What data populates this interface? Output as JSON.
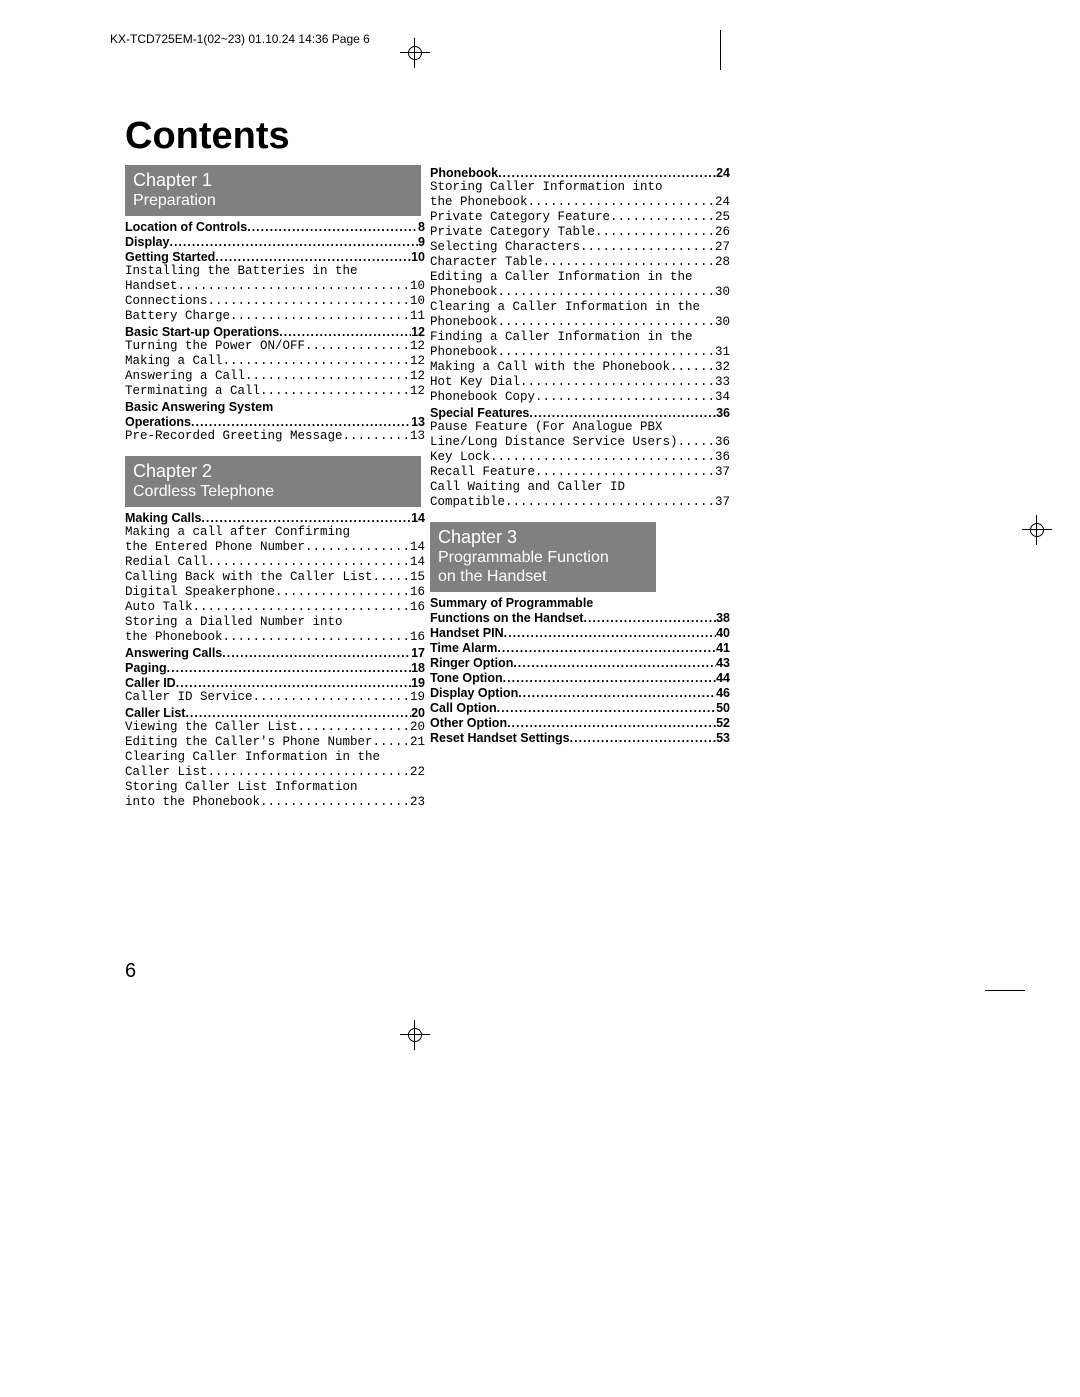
{
  "header_line": "KX-TCD725EM-1(02~23)  01.10.24 14:36  Page 6",
  "title": "Contents",
  "page_number": "6",
  "chapters": [
    {
      "num": "Chapter 1",
      "title": "Preparation",
      "groups": [
        {
          "type": "section",
          "label": "Location of Controls",
          "page": "8"
        },
        {
          "type": "section",
          "label": "Display",
          "page": "9"
        },
        {
          "type": "section",
          "label": "Getting Started",
          "page": "10"
        },
        {
          "type": "sub-wrap",
          "lines": [
            "Installing the Batteries in the",
            "Handset"
          ],
          "page": "10"
        },
        {
          "type": "sub",
          "label": "Connections",
          "page": "10"
        },
        {
          "type": "sub",
          "label": "Battery Charge",
          "page": "11"
        },
        {
          "type": "section",
          "label": "Basic Start-up Operations",
          "page": "12"
        },
        {
          "type": "sub",
          "label": "Turning the Power ON/OFF",
          "page": "12"
        },
        {
          "type": "sub",
          "label": "Making a Call",
          "page": "12"
        },
        {
          "type": "sub",
          "label": "Answering a Call",
          "page": "12"
        },
        {
          "type": "sub",
          "label": "Terminating a Call",
          "page": "12"
        },
        {
          "type": "section-wrap",
          "lines": [
            "Basic Answering System",
            "Operations"
          ],
          "page": "13"
        },
        {
          "type": "sub",
          "label": "Pre-Recorded Greeting Message",
          "page": "13"
        }
      ]
    },
    {
      "num": "Chapter 2",
      "title": "Cordless Telephone",
      "groups": [
        {
          "type": "section",
          "label": "Making Calls",
          "page": "14"
        },
        {
          "type": "sub-wrap",
          "lines": [
            "Making a call after Confirming",
            "the Entered Phone Number"
          ],
          "page": "14"
        },
        {
          "type": "sub",
          "label": "Redial Call",
          "page": "14"
        },
        {
          "type": "sub",
          "label": "Calling Back with the Caller List",
          "page": "15"
        },
        {
          "type": "sub",
          "label": "Digital Speakerphone",
          "page": "16"
        },
        {
          "type": "sub",
          "label": "Auto Talk",
          "page": "16"
        },
        {
          "type": "sub-wrap",
          "lines": [
            "Storing a Dialled Number into",
            "the Phonebook"
          ],
          "page": "16"
        },
        {
          "type": "section",
          "label": "Answering Calls",
          "page": "17"
        },
        {
          "type": "section",
          "label": "Paging",
          "page": "18"
        },
        {
          "type": "section",
          "label": "Caller ID",
          "page": "19"
        },
        {
          "type": "sub",
          "label": "Caller ID Service",
          "page": "19"
        },
        {
          "type": "section",
          "label": "Caller List",
          "page": "20"
        },
        {
          "type": "sub",
          "label": "Viewing the Caller List",
          "page": "20"
        },
        {
          "type": "sub",
          "label": "Editing the Caller's Phone Number",
          "page": "21"
        },
        {
          "type": "sub-wrap",
          "lines": [
            "Clearing Caller Information in the",
            "Caller List"
          ],
          "page": "22"
        },
        {
          "type": "sub-wrap",
          "lines": [
            "Storing Caller List Information",
            "into the Phonebook"
          ],
          "page": "23"
        }
      ]
    }
  ],
  "right_col": {
    "pre_groups": [
      {
        "type": "section",
        "label": "Phonebook",
        "page": "24"
      },
      {
        "type": "sub-wrap",
        "lines": [
          "Storing Caller Information into",
          "the Phonebook"
        ],
        "page": "24"
      },
      {
        "type": "sub",
        "label": "Private Category Feature",
        "page": "25"
      },
      {
        "type": "sub",
        "label": "Private Category Table",
        "page": "26"
      },
      {
        "type": "sub",
        "label": "Selecting Characters",
        "page": "27"
      },
      {
        "type": "sub",
        "label": "Character Table",
        "page": "28"
      },
      {
        "type": "sub-wrap",
        "lines": [
          "Editing a Caller Information in the",
          "Phonebook"
        ],
        "page": "30"
      },
      {
        "type": "sub-wrap",
        "lines": [
          "Clearing a Caller Information in the",
          "Phonebook"
        ],
        "page": "30"
      },
      {
        "type": "sub-wrap",
        "lines": [
          "Finding a Caller Information in the",
          "Phonebook"
        ],
        "page": "31"
      },
      {
        "type": "sub",
        "label": "Making a Call with the Phonebook",
        "page": "32"
      },
      {
        "type": "sub",
        "label": "Hot Key Dial",
        "page": "33"
      },
      {
        "type": "sub",
        "label": "Phonebook Copy",
        "page": "34"
      },
      {
        "type": "section",
        "label": "Special Features",
        "page": "36"
      },
      {
        "type": "sub-wrap",
        "lines": [
          "Pause Feature (For Analogue PBX",
          "Line/Long Distance Service Users)"
        ],
        "page": "36"
      },
      {
        "type": "sub",
        "label": "Key Lock",
        "page": "36"
      },
      {
        "type": "sub",
        "label": "Recall Feature",
        "page": "37"
      },
      {
        "type": "sub-wrap",
        "lines": [
          "Call Waiting and Caller ID",
          "Compatible"
        ],
        "page": "37"
      }
    ],
    "chapter": {
      "num": "Chapter 3",
      "title_l1": "Programmable Function",
      "title_l2": "on the Handset",
      "groups": [
        {
          "type": "section-wrap",
          "lines": [
            "Summary of Programmable",
            "Functions on the Handset"
          ],
          "page": "38"
        },
        {
          "type": "section",
          "label": "Handset PIN",
          "page": "40"
        },
        {
          "type": "section",
          "label": "Time Alarm",
          "page": "41"
        },
        {
          "type": "section",
          "label": "Ringer Option",
          "page": "43"
        },
        {
          "type": "section",
          "label": "Tone Option",
          "page": "44"
        },
        {
          "type": "section",
          "label": "Display Option",
          "page": "46"
        },
        {
          "type": "section",
          "label": "Call Option",
          "page": "50"
        },
        {
          "type": "section",
          "label": "Other Option",
          "page": "52"
        },
        {
          "type": "section",
          "label": "Reset Handset Settings",
          "page": "53"
        }
      ]
    }
  }
}
